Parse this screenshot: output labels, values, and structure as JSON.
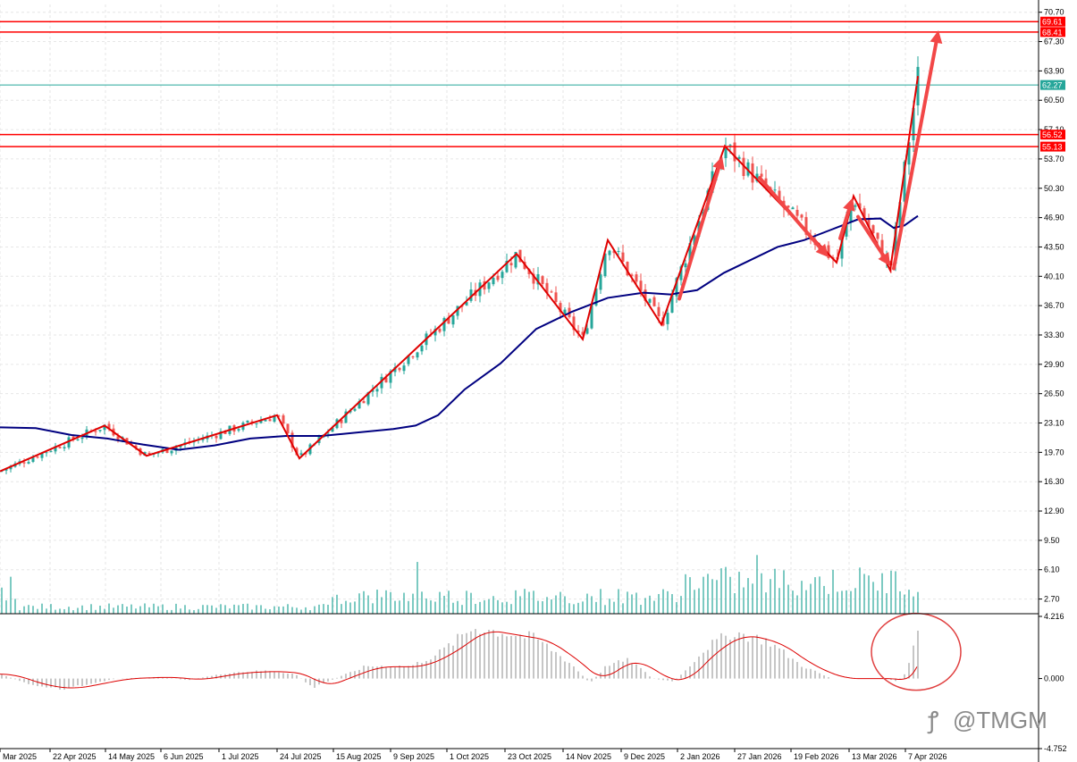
{
  "chart_data": {
    "type": "candlestick",
    "price_axis": {
      "ticks": [
        "70.70",
        "67.30",
        "63.90",
        "60.50",
        "57.10",
        "53.70",
        "50.30",
        "46.90",
        "43.50",
        "40.10",
        "36.70",
        "33.30",
        "29.90",
        "26.50",
        "23.10",
        "19.70",
        "16.30",
        "12.90",
        "9.50",
        "6.10",
        "2.70"
      ],
      "range": [
        1.0,
        71.6
      ]
    },
    "oscillator_axis": {
      "ticks": [
        "4.216",
        "0.000",
        "-4.752"
      ],
      "range": [
        -4.752,
        4.216
      ]
    },
    "x_ticks": [
      "Mar 2025",
      "22 Apr 2025",
      "14 May 2025",
      "6 Jun 2025",
      "1 Jul 2025",
      "24 Jul 2025",
      "15 Aug 2025",
      "9 Sep 2025",
      "1 Oct 2025",
      "23 Oct 2025",
      "14 Nov 2025",
      "9 Dec 2025",
      "2 Jan 2026",
      "27 Jan 2026",
      "19 Feb 2026",
      "13 Mar 2026",
      "7 Apr 2026"
    ],
    "levels": [
      {
        "value": 69.61,
        "label": "69.61",
        "color": "#ff0000",
        "kind": "resistance"
      },
      {
        "value": 68.41,
        "label": "68.41",
        "color": "#ff0000",
        "kind": "resistance"
      },
      {
        "value": 62.27,
        "label": "62.27",
        "color": "#26a69a",
        "kind": "current"
      },
      {
        "value": 56.52,
        "label": "56.52",
        "color": "#ff0000",
        "kind": "support"
      },
      {
        "value": 55.13,
        "label": "55.13",
        "color": "#ff0000",
        "kind": "support"
      }
    ],
    "zigzag": [
      [
        0,
        17.5
      ],
      [
        117,
        22.8
      ],
      [
        164,
        19.3
      ],
      [
        310,
        24.0
      ],
      [
        335,
        19.0
      ],
      [
        578,
        42.7
      ],
      [
        652,
        32.8
      ],
      [
        680,
        44.3
      ],
      [
        740,
        34.5
      ],
      [
        811,
        55.2
      ],
      [
        936,
        41.7
      ],
      [
        955,
        49.4
      ],
      [
        996,
        40.8
      ],
      [
        1027,
        63.3
      ]
    ],
    "moving_average": [
      [
        0,
        22.6
      ],
      [
        40,
        22.5
      ],
      [
        80,
        21.7
      ],
      [
        120,
        21.3
      ],
      [
        160,
        20.6
      ],
      [
        200,
        20.0
      ],
      [
        240,
        20.5
      ],
      [
        280,
        21.3
      ],
      [
        320,
        21.6
      ],
      [
        360,
        21.6
      ],
      [
        400,
        22.0
      ],
      [
        440,
        22.4
      ],
      [
        465,
        22.8
      ],
      [
        490,
        24.0
      ],
      [
        520,
        27.0
      ],
      [
        560,
        30.0
      ],
      [
        600,
        34.0
      ],
      [
        640,
        36.0
      ],
      [
        680,
        37.6
      ],
      [
        720,
        38.2
      ],
      [
        750,
        38.0
      ],
      [
        780,
        38.5
      ],
      [
        810,
        40.5
      ],
      [
        840,
        42.0
      ],
      [
        870,
        43.5
      ],
      [
        900,
        44.3
      ],
      [
        930,
        45.5
      ],
      [
        960,
        46.7
      ],
      [
        985,
        46.8
      ],
      [
        1000,
        45.7
      ],
      [
        1012,
        46.0
      ],
      [
        1027,
        47.1
      ]
    ],
    "arrows": [
      {
        "from": [
          760,
          37.5
        ],
        "to": [
          808,
          54.0
        ]
      },
      {
        "from": [
          850,
          51.5
        ],
        "to": [
          927,
          42.3
        ]
      },
      {
        "from": [
          940,
          44.5
        ],
        "to": [
          954,
          49.2
        ]
      },
      {
        "from": [
          960,
          47.0
        ],
        "to": [
          996,
          41.3
        ]
      },
      {
        "from": [
          1000,
          41.0
        ],
        "to": [
          1050,
          68.6
        ]
      }
    ],
    "highlight_circle": {
      "x": 1025,
      "y": 0.3
    },
    "colors": {
      "up": "#26a69a",
      "down": "#ef5350",
      "zigzag": "#e00000",
      "ma": "#000080",
      "arrow": "#f24747",
      "volume": "#26a69a",
      "hist": "#b8b8b8",
      "signal": "#dd0000"
    },
    "watermark": "@TMGM"
  }
}
